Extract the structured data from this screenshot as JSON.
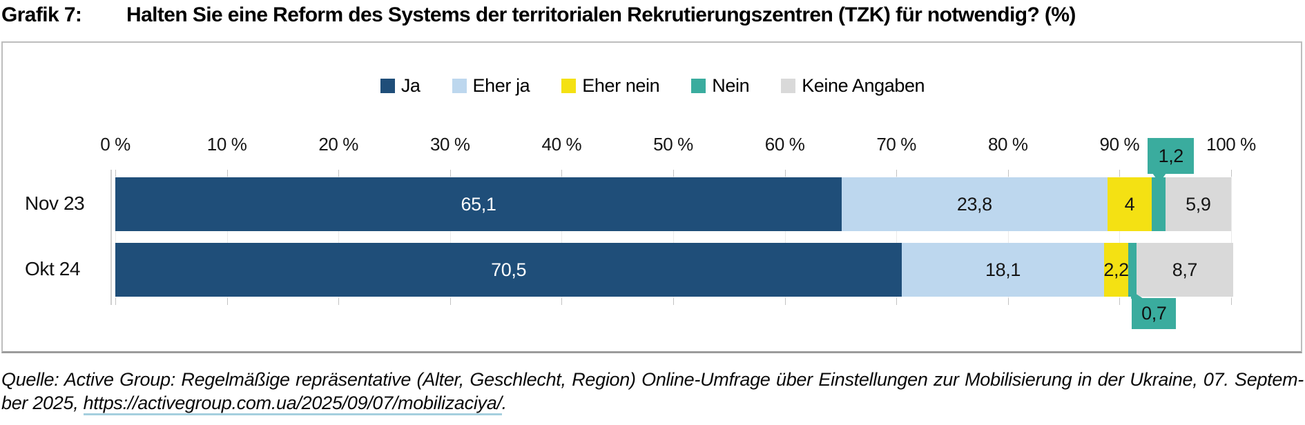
{
  "title": {
    "prefix": "Grafik 7:",
    "text": "Halten Sie eine Reform des Systems der territorialen Rekrutierungszentren (TZK) für notwendig? (%)"
  },
  "chart_data": {
    "type": "bar",
    "orientation": "horizontal-stacked",
    "title": "Halten Sie eine Reform des Systems der territorialen Rekrutierungszentren (TZK) für notwendig? (%)",
    "categories": [
      "Nov 23",
      "Okt 24"
    ],
    "series": [
      {
        "name": "Ja",
        "color": "#1F4E79",
        "label_color": "#FFFFFF",
        "values": [
          65.1,
          70.5
        ],
        "labels": [
          "65,1",
          "70,5"
        ]
      },
      {
        "name": "Eher ja",
        "color": "#BDD7EE",
        "label_color": "#161616",
        "values": [
          23.8,
          18.1
        ],
        "labels": [
          "23,8",
          "18,1"
        ]
      },
      {
        "name": "Eher nein",
        "color": "#F4E113",
        "label_color": "#161616",
        "values": [
          4,
          2.2
        ],
        "labels": [
          "4",
          "2,2"
        ]
      },
      {
        "name": "Nein",
        "color": "#3AAC9E",
        "label_color": "#101010",
        "values": [
          1.2,
          0.7
        ],
        "labels": [
          "1,2",
          "0,7"
        ],
        "callout": true
      },
      {
        "name": "Keine Angaben",
        "color": "#D9D9D9",
        "label_color": "#161616",
        "values": [
          5.9,
          8.7
        ],
        "labels": [
          "5,9",
          "8,7"
        ]
      }
    ],
    "x_axis": {
      "min": 0,
      "max": 100,
      "ticks": [
        "0 %",
        "10 %",
        "20 %",
        "30 %",
        "40 %",
        "50 %",
        "60 %",
        "70 %",
        "80 %",
        "90 %",
        "100 %"
      ]
    },
    "legend_position": "top-center",
    "grid": true
  },
  "source": {
    "line1": "Quelle: Active Group: Regelmäßige repräsentative (Alter, Geschlecht, Region) Online-Umfrage über Einstellungen zur Mobilisierung in der Ukraine, 07. Septem-",
    "line2_prefix": "ber 2025, ",
    "url": "https://activegroup.com.ua/2025/09/07/mobilizaciya/",
    "line2_suffix": ".",
    "underline_color": "#A5CFDE"
  }
}
